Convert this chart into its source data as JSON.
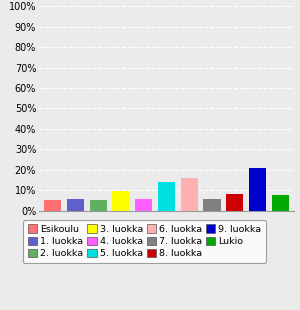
{
  "categories": [
    "Esikoulu",
    "1. luokka",
    "2. luokka",
    "3. luokka",
    "4. luokka",
    "5. luokka",
    "6. luokka",
    "7. luokka",
    "8. luokka",
    "9. luokka",
    "Lukio"
  ],
  "values": [
    5.5,
    6.0,
    5.5,
    9.5,
    6.0,
    14.0,
    16.0,
    6.0,
    8.0,
    21.0,
    7.5
  ],
  "colors": [
    "#ff7070",
    "#6060cc",
    "#60b060",
    "#ffff00",
    "#ff60ff",
    "#00e0e0",
    "#ffb0b0",
    "#808080",
    "#cc0000",
    "#0000cc",
    "#00aa00"
  ],
  "ylim": [
    0,
    100
  ],
  "yticks": [
    0,
    10,
    20,
    30,
    40,
    50,
    60,
    70,
    80,
    90,
    100
  ],
  "ytick_labels": [
    "0%",
    "10%",
    "20%",
    "30%",
    "40%",
    "50%",
    "60%",
    "70%",
    "80%",
    "90%",
    "100%"
  ],
  "background_color": "#ebebeb",
  "grid_color": "#ffffff",
  "bar_width": 0.75
}
